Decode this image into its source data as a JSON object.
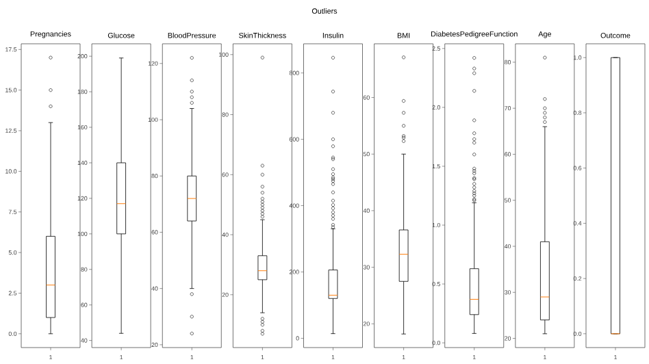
{
  "chart_data": [
    {
      "type": "box",
      "title": "Pregnancies",
      "annotations": [
        "Outliers"
      ],
      "categories": [
        "1"
      ],
      "marker": "circle",
      "boxes": [
        {
          "low": 0,
          "q1": 1,
          "median": 3,
          "q3": 6,
          "high": 13,
          "outliers": [
            14,
            15,
            17
          ]
        }
      ],
      "ylim": [
        -0.85,
        17.85
      ],
      "yticks": [
        {
          "value": 0,
          "label": "0.0"
        },
        {
          "value": 2.5,
          "label": "2.5"
        },
        {
          "value": 5,
          "label": "5.0"
        },
        {
          "value": 7.5,
          "label": "7.5"
        },
        {
          "value": 10,
          "label": "10.0"
        },
        {
          "value": 12.5,
          "label": "12.5"
        },
        {
          "value": 15,
          "label": "15.0"
        },
        {
          "value": 17.5,
          "label": "17.5"
        }
      ]
    },
    {
      "type": "box",
      "title": "Glucose",
      "categories": [
        "1"
      ],
      "marker": "circle",
      "boxes": [
        {
          "low": 44,
          "q1": 100,
          "median": 117,
          "q3": 140,
          "high": 199
        }
      ],
      "ylim": [
        36,
        207
      ],
      "yticks": [
        40,
        60,
        80,
        100,
        120,
        140,
        160,
        180,
        200
      ]
    },
    {
      "type": "box",
      "title": "BloodPressure",
      "categories": [
        "1"
      ],
      "marker": "circle",
      "boxes": [
        {
          "low": 40,
          "q1": 64,
          "median": 72,
          "q3": 80,
          "high": 104,
          "outliers": [
            24,
            30,
            38,
            106,
            108,
            110,
            114,
            122
          ]
        }
      ],
      "ylim": [
        19,
        127
      ],
      "yticks": [
        20,
        40,
        60,
        80,
        100,
        120
      ]
    },
    {
      "type": "box",
      "title": "SkinThickness",
      "categories": [
        "1"
      ],
      "marker": "circle",
      "boxes": [
        {
          "low": 14,
          "q1": 25,
          "median": 28,
          "q3": 33,
          "high": 45,
          "outliers": [
            7,
            8,
            10,
            11,
            12,
            46,
            47,
            48,
            49,
            50,
            51,
            52,
            54,
            56,
            60,
            63,
            99
          ]
        }
      ],
      "ylim": [
        2.4,
        103.6
      ],
      "yticks": [
        20,
        40,
        60,
        80,
        100
      ]
    },
    {
      "type": "box",
      "title": "Insulin",
      "categories": [
        "1"
      ],
      "marker": "circle",
      "boxes": [
        {
          "low": 14,
          "q1": 120,
          "median": 130,
          "q3": 206,
          "high": 330,
          "outliers": [
            335,
            342,
            360,
            370,
            380,
            392,
            402,
            415,
            440,
            465,
            474,
            480,
            485,
            495,
            510,
            540,
            545,
            579,
            600,
            680,
            744,
            846
          ]
        }
      ],
      "ylim": [
        -28,
        888
      ],
      "yticks": [
        0,
        200,
        400,
        600,
        800
      ]
    },
    {
      "type": "box",
      "title": "BMI",
      "categories": [
        "1"
      ],
      "marker": "circle",
      "boxes": [
        {
          "low": 18.2,
          "q1": 27.5,
          "median": 32.3,
          "q3": 36.6,
          "high": 50,
          "outliers": [
            52.3,
            52.9,
            53.2,
            55,
            57.3,
            59.4,
            67.1
          ]
        }
      ],
      "ylim": [
        15.8,
        69.5
      ],
      "yticks": [
        20,
        30,
        40,
        50,
        60
      ]
    },
    {
      "type": "box",
      "title": "DiabetesPedigreeFunction",
      "categories": [
        "1"
      ],
      "marker": "circle",
      "boxes": [
        {
          "low": 0.08,
          "q1": 0.24,
          "median": 0.37,
          "q3": 0.63,
          "high": 1.19,
          "outliers": [
            1.21,
            1.22,
            1.25,
            1.27,
            1.29,
            1.32,
            1.35,
            1.39,
            1.4,
            1.44,
            1.46,
            1.48,
            1.6,
            1.7,
            1.73,
            1.78,
            1.89,
            2.14,
            2.29,
            2.33,
            2.42
          ]
        }
      ],
      "ylim": [
        -0.04,
        2.54
      ],
      "yticks": [
        {
          "value": 0,
          "label": "0.0"
        },
        {
          "value": 0.5,
          "label": "0.5"
        },
        {
          "value": 1,
          "label": "1.0"
        },
        {
          "value": 1.5,
          "label": "1.5"
        },
        {
          "value": 2,
          "label": "2.0"
        },
        {
          "value": 2.5,
          "label": "2.5"
        }
      ]
    },
    {
      "type": "box",
      "title": "Age",
      "categories": [
        "1"
      ],
      "marker": "circle",
      "boxes": [
        {
          "low": 21,
          "q1": 24,
          "median": 29,
          "q3": 41,
          "high": 66,
          "outliers": [
            67,
            68,
            69,
            70,
            72,
            81
          ]
        }
      ],
      "ylim": [
        18,
        84
      ],
      "yticks": [
        20,
        30,
        40,
        50,
        60,
        70,
        80
      ]
    },
    {
      "type": "box",
      "title": "Outcome",
      "categories": [
        "1"
      ],
      "marker": "circle",
      "boxes": [
        {
          "low": 0,
          "q1": 0,
          "median": 0,
          "q3": 1,
          "high": 1
        }
      ],
      "ylim": [
        -0.05,
        1.05
      ],
      "yticks": [
        {
          "value": 0,
          "label": "0.0"
        },
        {
          "value": 0.2,
          "label": "0.2"
        },
        {
          "value": 0.4,
          "label": "0.4"
        },
        {
          "value": 0.6,
          "label": "0.6"
        },
        {
          "value": 0.8,
          "label": "0.8"
        },
        {
          "value": 1,
          "label": "1.0"
        }
      ]
    }
  ]
}
